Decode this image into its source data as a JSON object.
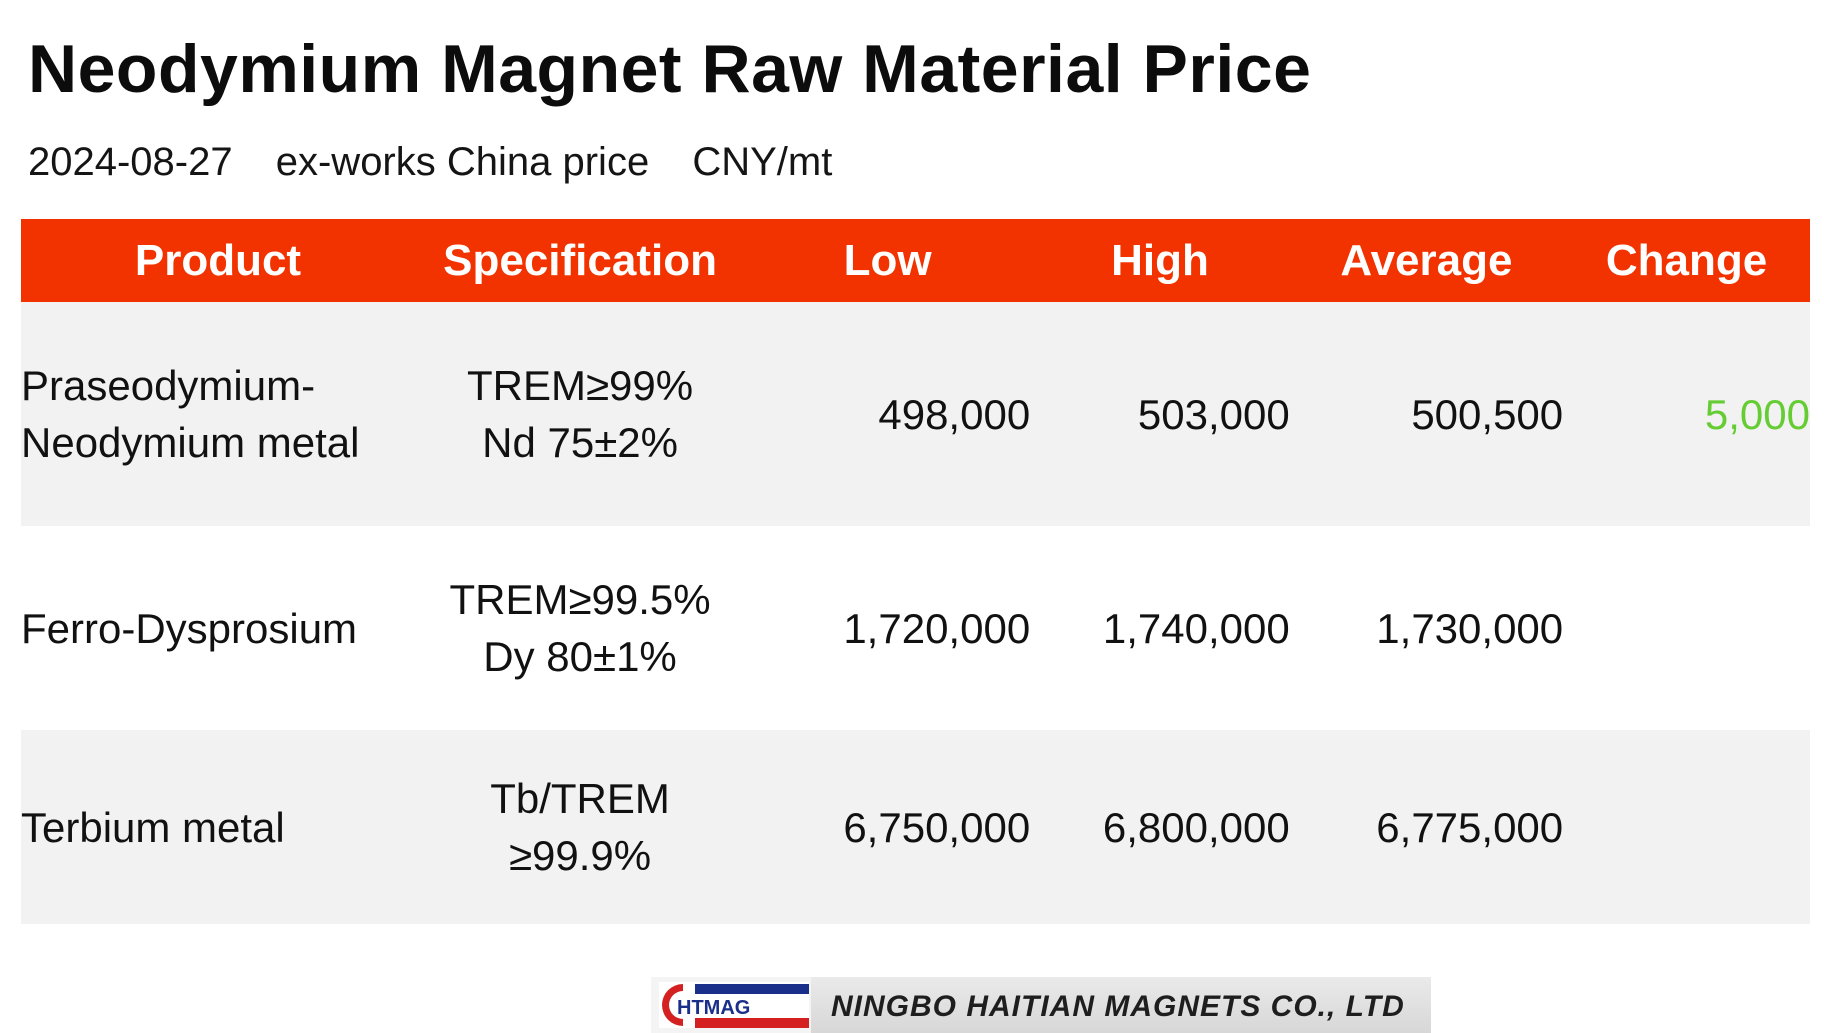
{
  "title": "Neodymium Magnet Raw Material Price",
  "subtitle": {
    "date": "2024-08-27",
    "basis": "ex-works China price",
    "unit": "CNY/mt"
  },
  "table": {
    "headers": [
      "Product",
      "Specification",
      "Low",
      "High",
      "Average",
      "Change"
    ],
    "rows": [
      {
        "product": [
          "Praseodymium-",
          "Neodymium metal"
        ],
        "spec": [
          "TREM≥99%",
          "Nd 75±2%"
        ],
        "low": "498,000",
        "high": "503,000",
        "average": "500,500",
        "change": "5,000"
      },
      {
        "product": [
          "Ferro-Dysprosium"
        ],
        "spec": [
          "TREM≥99.5%",
          "Dy 80±1%"
        ],
        "low": "1,720,000",
        "high": "1,740,000",
        "average": "1,730,000",
        "change": ""
      },
      {
        "product": [
          "Terbium metal"
        ],
        "spec": [
          "Tb/TREM",
          "≥99.9%"
        ],
        "low": "6,750,000",
        "high": "6,800,000",
        "average": "6,775,000",
        "change": ""
      }
    ]
  },
  "colors": {
    "header_bg": "#f23300",
    "header_text": "#ffffff",
    "change_up": "#66cc33",
    "row_alt_bg": "#f2f2f2"
  },
  "footer": {
    "logo_text": "HTMAG",
    "company": "NINGBO HAITIAN MAGNETS CO., LTD"
  }
}
